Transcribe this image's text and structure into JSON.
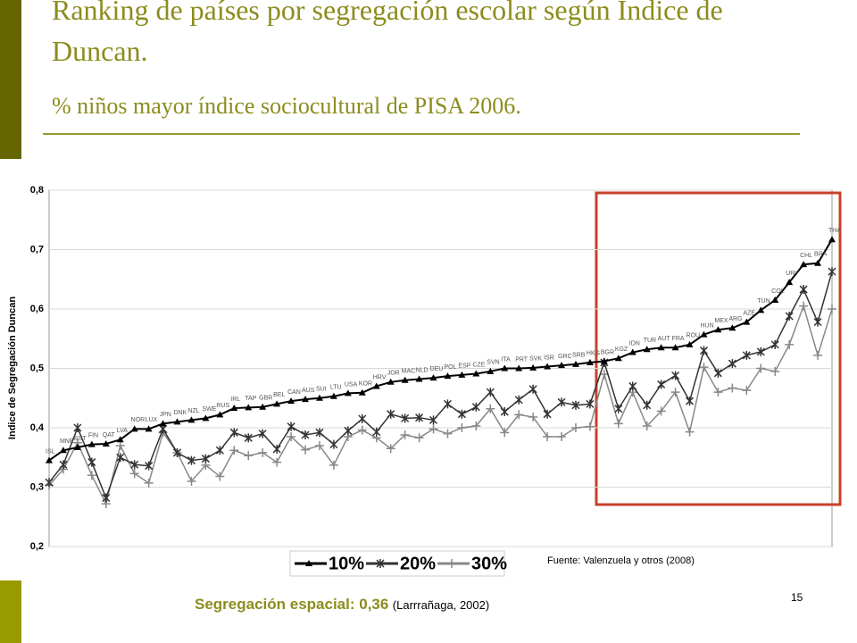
{
  "header": {
    "title": "Ranking de países por segregación escolar según Índice de Duncan.",
    "subtitle": "% niños mayor  índice sociocultural de PISA 2006."
  },
  "chart_data": {
    "type": "line",
    "y_label": "Indice de Segregación Duncan",
    "source": "Fuente: Valenzuela  y otros (2008)",
    "categories": [
      "ISL",
      "MNE",
      "EST",
      "FIN",
      "QAT",
      "LVA",
      "NOR",
      "LUX",
      "JPN",
      "DNK",
      "NZL",
      "SWE",
      "RUS",
      "IRL",
      "TAP",
      "GBR",
      "BEL",
      "CAN",
      "AUS",
      "SUI",
      "LTU",
      "USA",
      "KOR",
      "HRV",
      "JOR",
      "MAC",
      "NLD",
      "DEU",
      "POL",
      "ESP",
      "CZE",
      "SVN",
      "ITA",
      "PRT",
      "SVK",
      "ISR",
      "GRC",
      "SRB",
      "HKG",
      "BGR",
      "KGZ",
      "IDN",
      "TUR",
      "AUT",
      "FRA",
      "ROU",
      "HUN",
      "MEX",
      "ARG",
      "AZE",
      "TUN",
      "COL",
      "URY",
      "CHL",
      "BRA",
      "THA"
    ],
    "series": [
      {
        "name": "10%",
        "color": "#000000",
        "values": [
          0.345,
          0.362,
          0.367,
          0.372,
          0.373,
          0.38,
          0.398,
          0.398,
          0.407,
          0.41,
          0.413,
          0.416,
          0.422,
          0.433,
          0.434,
          0.435,
          0.44,
          0.445,
          0.448,
          0.45,
          0.453,
          0.458,
          0.459,
          0.47,
          0.477,
          0.48,
          0.482,
          0.484,
          0.487,
          0.489,
          0.491,
          0.495,
          0.5,
          0.5,
          0.501,
          0.503,
          0.505,
          0.507,
          0.51,
          0.512,
          0.517,
          0.527,
          0.532,
          0.535,
          0.535,
          0.54,
          0.557,
          0.565,
          0.568,
          0.578,
          0.598,
          0.615,
          0.645,
          0.675,
          0.677,
          0.717
        ]
      },
      {
        "name": "20%",
        "color": "#333333",
        "values": [
          0.308,
          0.338,
          0.4,
          0.342,
          0.282,
          0.35,
          0.338,
          0.336,
          0.398,
          0.358,
          0.345,
          0.348,
          0.362,
          0.392,
          0.383,
          0.39,
          0.364,
          0.402,
          0.388,
          0.392,
          0.372,
          0.395,
          0.415,
          0.393,
          0.423,
          0.416,
          0.417,
          0.413,
          0.44,
          0.423,
          0.435,
          0.46,
          0.427,
          0.447,
          0.465,
          0.423,
          0.443,
          0.438,
          0.44,
          0.51,
          0.432,
          0.47,
          0.438,
          0.473,
          0.488,
          0.445,
          0.53,
          0.492,
          0.508,
          0.522,
          0.528,
          0.54,
          0.588,
          0.633,
          0.578,
          0.663
        ]
      },
      {
        "name": "30%",
        "color": "#888888",
        "values": [
          0.303,
          0.33,
          0.375,
          0.32,
          0.272,
          0.37,
          0.323,
          0.307,
          0.392,
          0.358,
          0.31,
          0.337,
          0.318,
          0.362,
          0.353,
          0.358,
          0.342,
          0.385,
          0.363,
          0.37,
          0.337,
          0.385,
          0.396,
          0.383,
          0.365,
          0.388,
          0.383,
          0.398,
          0.39,
          0.4,
          0.403,
          0.432,
          0.392,
          0.422,
          0.418,
          0.385,
          0.385,
          0.4,
          0.402,
          0.49,
          0.407,
          0.46,
          0.403,
          0.428,
          0.46,
          0.393,
          0.502,
          0.46,
          0.467,
          0.463,
          0.5,
          0.495,
          0.54,
          0.605,
          0.522,
          0.6
        ]
      }
    ],
    "ylim": [
      0.2,
      0.8
    ],
    "yticks": [
      {
        "value": 0.2,
        "label": "0,2"
      },
      {
        "value": 0.3,
        "label": "0,3"
      },
      {
        "value": 0.4,
        "label": "0,4"
      },
      {
        "value": 0.5,
        "label": "0,5"
      },
      {
        "value": 0.6,
        "label": "0,6"
      },
      {
        "value": 0.7,
        "label": "0,7"
      },
      {
        "value": 0.8,
        "label": "0,8"
      }
    ],
    "grid": true
  },
  "footer": {
    "main": "Segregación espacial: 0,36",
    "cite": "(Larrrañaga, 2002)",
    "page": "15"
  }
}
